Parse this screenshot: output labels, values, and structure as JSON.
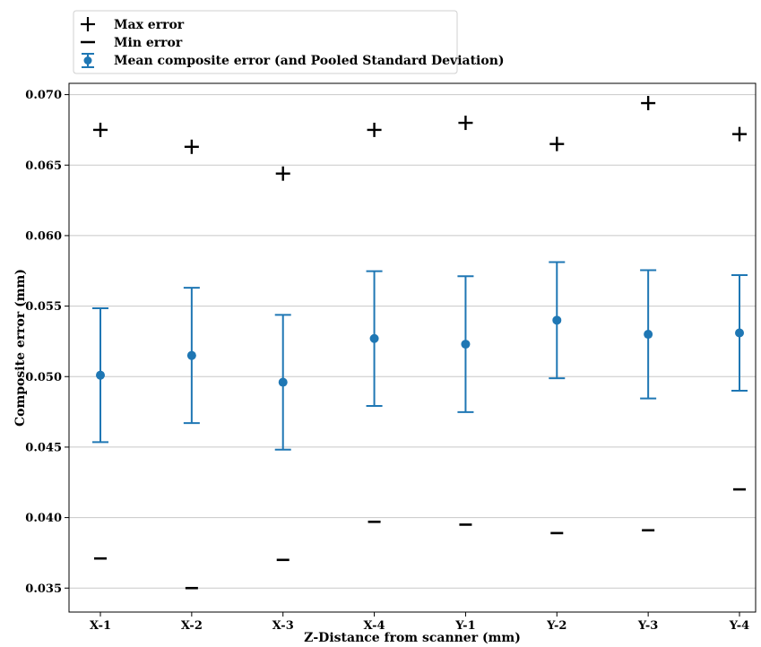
{
  "chart_data": {
    "type": "scatter",
    "title": "",
    "xlabel": "Z-Distance from scanner (mm)",
    "ylabel": "Composite error (mm)",
    "categories": [
      "X-1",
      "X-2",
      "X-3",
      "X-4",
      "Y-1",
      "Y-2",
      "Y-3",
      "Y-4"
    ],
    "ylim": [
      0.0333,
      0.0708
    ],
    "yticks": [
      "0.035",
      "0.040",
      "0.045",
      "0.050",
      "0.055",
      "0.060",
      "0.065",
      "0.070"
    ],
    "grid": "horizontal",
    "legend_position": "top-left, above plot",
    "series": [
      {
        "name": "Max error",
        "marker": "plus",
        "color": "#000000",
        "values": [
          0.0675,
          0.0663,
          0.0644,
          0.0675,
          0.068,
          0.0665,
          0.0694,
          0.0672
        ]
      },
      {
        "name": "Min error",
        "marker": "dash",
        "color": "#000000",
        "values": [
          0.0371,
          0.035,
          0.037,
          0.0397,
          0.0395,
          0.0389,
          0.0391,
          0.042
        ]
      },
      {
        "name": "Mean composite error (and Pooled Standard Deviation)",
        "marker": "circle-errorbar",
        "color": "#1f77b4",
        "values": [
          0.0501,
          0.0515,
          0.0496,
          0.0527,
          0.0523,
          0.054,
          0.053,
          0.0531
        ],
        "error": [
          0.00475,
          0.0048,
          0.00478,
          0.00478,
          0.00482,
          0.00412,
          0.00455,
          0.0041
        ]
      }
    ]
  }
}
